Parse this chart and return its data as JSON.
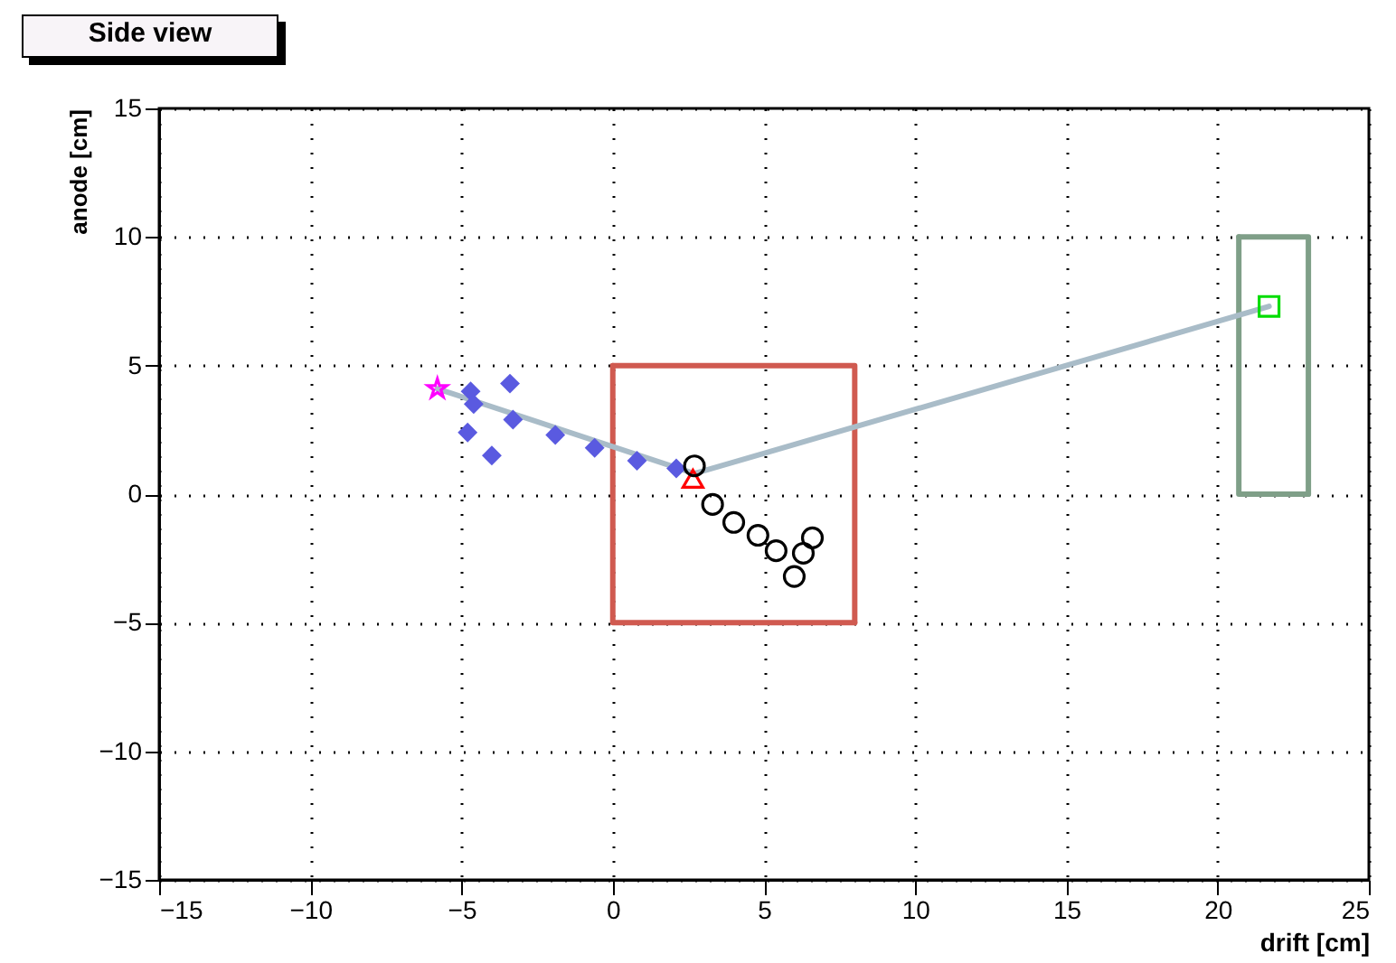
{
  "chart_data": {
    "type": "scatter",
    "title": "Side view",
    "xlabel": "drift [cm]",
    "ylabel": "anode [cm]",
    "xlim": [
      -15,
      25
    ],
    "xticks": [
      -15,
      -10,
      -5,
      0,
      5,
      10,
      15,
      20,
      25
    ],
    "ylim": [
      -15,
      15
    ],
    "yticks": [
      -15,
      -10,
      -5,
      0,
      5,
      10,
      15
    ],
    "grid": true,
    "series": [
      {
        "type": "line",
        "color": "#d05a50",
        "marker": "none",
        "x": [
          0,
          8,
          8
        ],
        "values": [
          5,
          5,
          -5
        ]
      },
      {
        "type": "line",
        "color": "#d05a50",
        "marker": "none",
        "x": [
          0,
          0,
          8
        ],
        "values": [
          5,
          -5,
          -5
        ]
      },
      {
        "type": "line",
        "color": "#7f9f88",
        "marker": "none",
        "x": [
          20.7,
          23,
          23
        ],
        "values": [
          10,
          10,
          0
        ]
      },
      {
        "type": "line",
        "color": "#7f9f88",
        "marker": "none",
        "x": [
          20.7,
          20.7,
          23
        ],
        "values": [
          10,
          0,
          0
        ]
      },
      {
        "type": "line",
        "color": "#a9bcc8",
        "marker": "none",
        "x": [
          -5.8,
          2.7,
          21.7
        ],
        "values": [
          4.1,
          0.8,
          7.3
        ]
      },
      {
        "type": "scatter",
        "color": "#5a5ae0",
        "marker": "diamond",
        "x": [
          -4.7,
          -3.4,
          -4.6,
          -4.8,
          -3.3,
          -1.9,
          -0.6,
          0.8,
          2.1,
          -4.0
        ],
        "values": [
          4.0,
          4.3,
          3.5,
          2.4,
          2.9,
          2.3,
          1.8,
          1.3,
          1.0,
          1.5
        ]
      },
      {
        "type": "scatter",
        "color": "#ff00ff",
        "marker": "star",
        "x": [
          -5.8
        ],
        "values": [
          4.1
        ]
      },
      {
        "type": "scatter",
        "color": "#ff0000",
        "marker": "triangle",
        "x": [
          2.65
        ],
        "values": [
          0.6
        ]
      },
      {
        "type": "scatter",
        "color": "#000000",
        "marker": "circle",
        "x": [
          2.7,
          3.3,
          4.0,
          4.8,
          5.4,
          6.0,
          6.6,
          6.3
        ],
        "values": [
          1.1,
          -0.4,
          -1.1,
          -1.6,
          -2.2,
          -3.2,
          -1.7,
          -2.3
        ]
      },
      {
        "type": "scatter",
        "color": "#00dd00",
        "marker": "square",
        "x": [
          21.7
        ],
        "values": [
          7.3
        ]
      }
    ]
  }
}
